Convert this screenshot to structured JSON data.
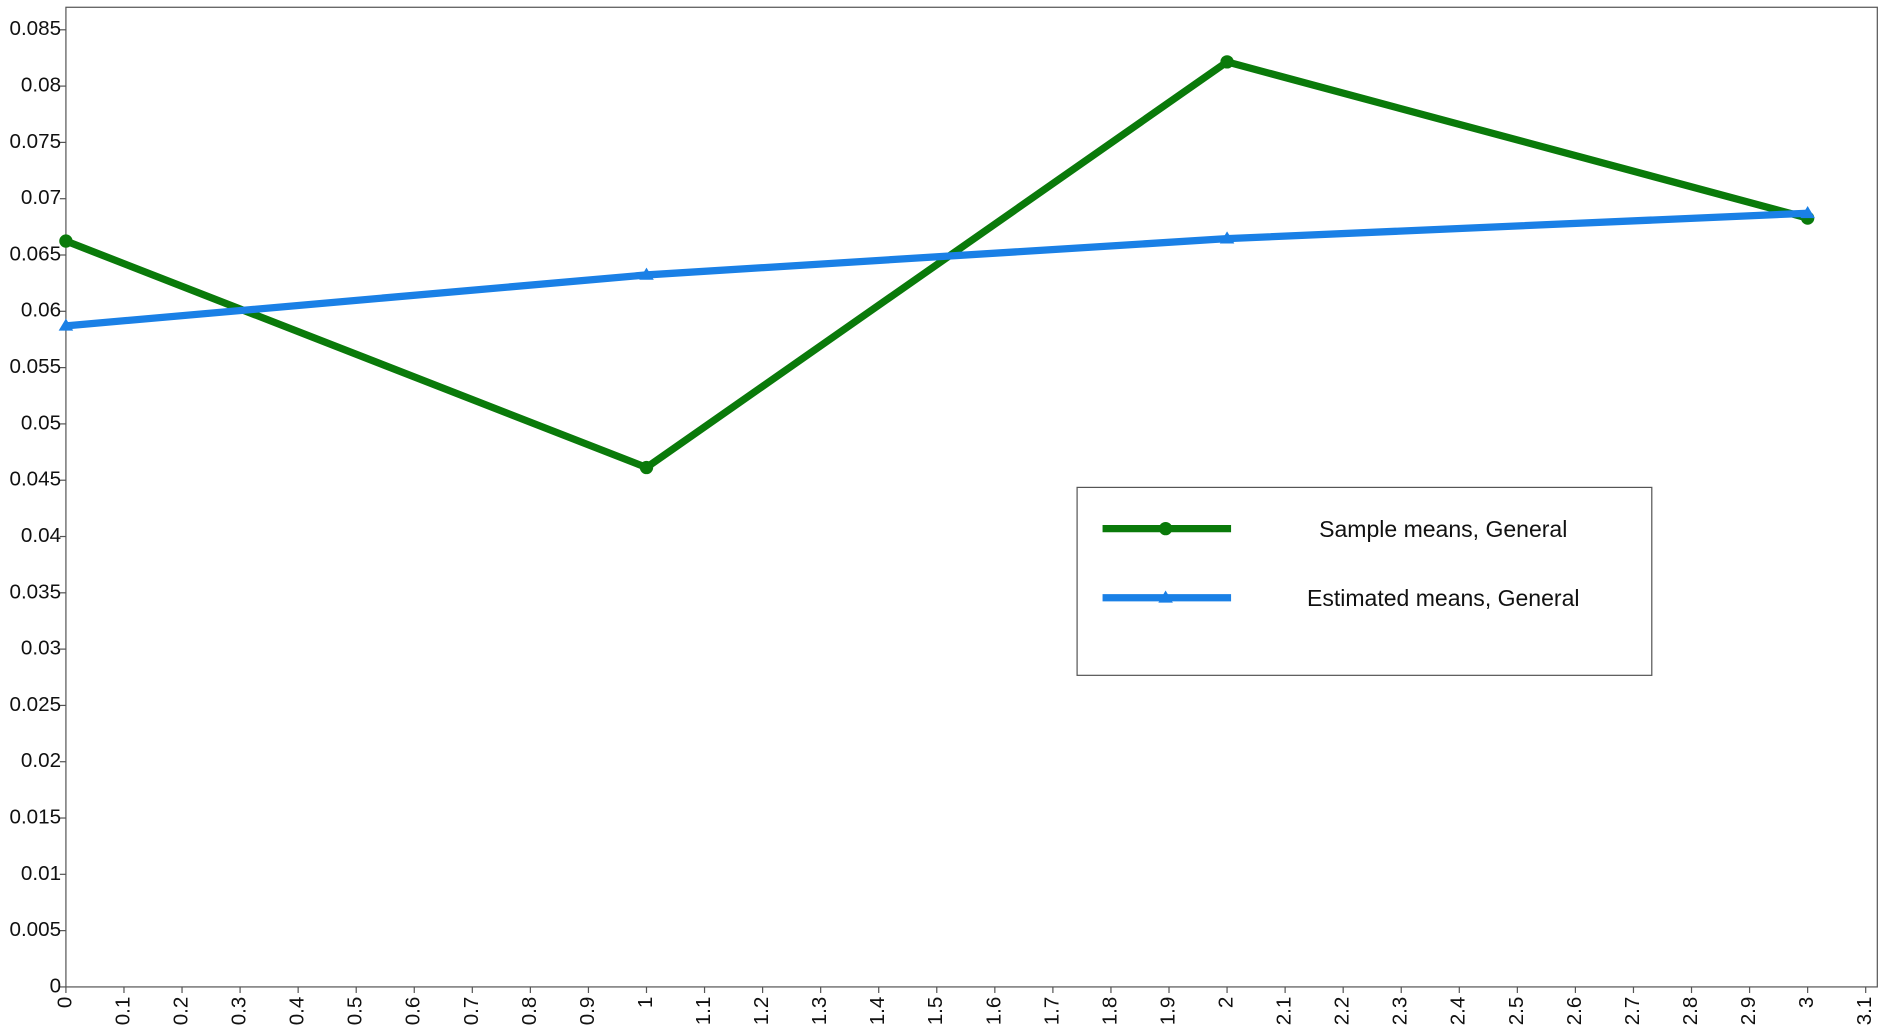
{
  "chart_data": {
    "type": "line",
    "x": [
      0,
      1,
      2,
      3
    ],
    "series": [
      {
        "name": "Sample means, General",
        "color": "#0a7a0a",
        "values": [
          0.06624,
          0.04613,
          0.08215,
          0.06828
        ]
      },
      {
        "name": "Estimated means, General",
        "color": "#1a80e6",
        "values": [
          0.05871,
          0.06323,
          0.06645,
          0.06871
        ]
      }
    ],
    "xlim": [
      0,
      3.12
    ],
    "xticks": [
      0,
      0.1,
      0.2,
      0.3,
      0.4,
      0.5,
      0.6,
      0.7,
      0.8,
      0.9,
      1,
      1.1,
      1.2,
      1.3,
      1.4,
      1.5,
      1.6,
      1.7,
      1.8,
      1.9,
      2,
      2.1,
      2.2,
      2.3,
      2.4,
      2.5,
      2.6,
      2.7,
      2.8,
      2.9,
      3,
      3.1
    ],
    "ylim": [
      0,
      0.087
    ],
    "yticks": [
      0,
      0.005,
      0.01,
      0.015,
      0.02,
      0.025,
      0.03,
      0.035,
      0.04,
      0.045,
      0.05,
      0.055,
      0.06,
      0.065,
      0.07,
      0.075,
      0.08,
      0.085
    ],
    "grid": false
  }
}
